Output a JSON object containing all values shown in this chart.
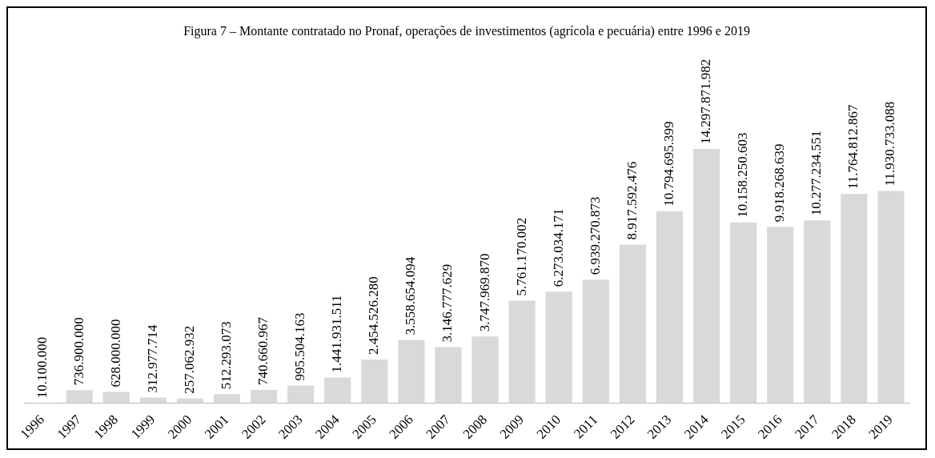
{
  "chart_data": {
    "type": "bar",
    "title": "Figura 7 – Montante contratado no Pronaf, operações de investimentos (agrícola e pecuária) entre 1996 e 2019",
    "categories": [
      "1996",
      "1997",
      "1998",
      "1999",
      "2000",
      "2001",
      "2002",
      "2003",
      "2004",
      "2005",
      "2006",
      "2007",
      "2008",
      "2009",
      "2010",
      "2011",
      "2012",
      "2013",
      "2014",
      "2015",
      "2016",
      "2017",
      "2018",
      "2019"
    ],
    "values": [
      10100000,
      736900000,
      628000000,
      312977714,
      257062932,
      512293073,
      740660967,
      995504163,
      1441931511,
      2454526280,
      3558654094,
      3146777629,
      3747969870,
      5761170002,
      6273034171,
      6939270873,
      8917592476,
      10794695399,
      14297871982,
      10158250603,
      9918268639,
      10277234551,
      11764812867,
      11930733088
    ],
    "value_labels": [
      "10.100.000",
      "736.900.000",
      "628.000.000",
      "312.977.714",
      "257.062.932",
      "512.293.073",
      "740.660.967",
      "995.504.163",
      "1.441.931.511",
      "2.454.526.280",
      "3.558.654.094",
      "3.146.777.629",
      "3.747.969.870",
      "5.761.170.002",
      "6.273.034.171",
      "6.939.270.873",
      "8.917.592.476",
      "10.794.695.399",
      "14.297.871.982",
      "10.158.250.603",
      "9.918.268.639",
      "10.277.234.551",
      "11.764.812.867",
      "11.930.733.088"
    ],
    "color": "#d9d9d9"
  }
}
